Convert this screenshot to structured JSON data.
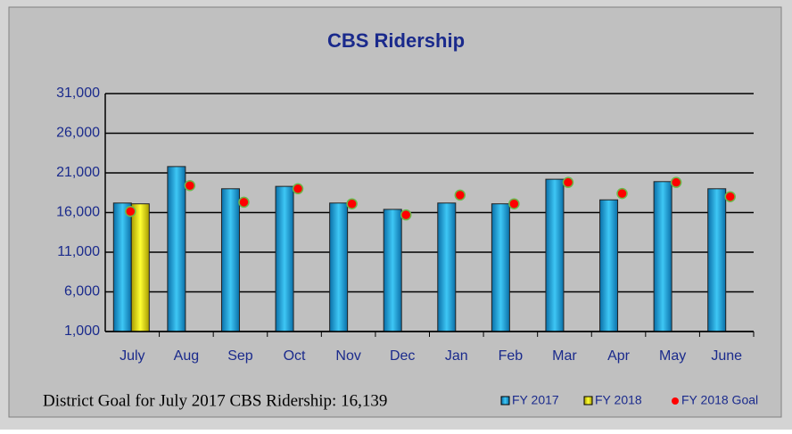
{
  "chart_data": {
    "type": "bar",
    "title": "CBS Ridership",
    "categories": [
      "July",
      "Aug",
      "Sep",
      "Oct",
      "Nov",
      "Dec",
      "Jan",
      "Feb",
      "Mar",
      "Apr",
      "May",
      "June"
    ],
    "series": [
      {
        "name": "FY 2017",
        "color": "#1fa7e0",
        "kind": "bar",
        "values": [
          17200,
          21800,
          19000,
          19300,
          17200,
          16400,
          17200,
          17100,
          20200,
          17600,
          19900,
          19000
        ]
      },
      {
        "name": "FY 2018",
        "color": "#f2e600",
        "kind": "bar",
        "values": [
          17100,
          null,
          null,
          null,
          null,
          null,
          null,
          null,
          null,
          null,
          null,
          null
        ]
      },
      {
        "name": "FY 2018 Goal",
        "color": "#ff0000",
        "kind": "dot",
        "values": [
          16139,
          19400,
          17300,
          19000,
          17100,
          15700,
          18200,
          17100,
          19800,
          18400,
          19800,
          18000
        ]
      }
    ],
    "ylim": [
      1000,
      31000
    ],
    "yticks": [
      {
        "value": 1000,
        "label": "1,000"
      },
      {
        "value": 6000,
        "label": "6,000"
      },
      {
        "value": 11000,
        "label": "11,000"
      },
      {
        "value": 16000,
        "label": "16,000"
      },
      {
        "value": 21000,
        "label": "21,000"
      },
      {
        "value": 26000,
        "label": "26,000"
      },
      {
        "value": 31000,
        "label": "31,000"
      }
    ],
    "grid": true,
    "annotation": "District Goal for July 2017 CBS Ridership:  16,139"
  }
}
